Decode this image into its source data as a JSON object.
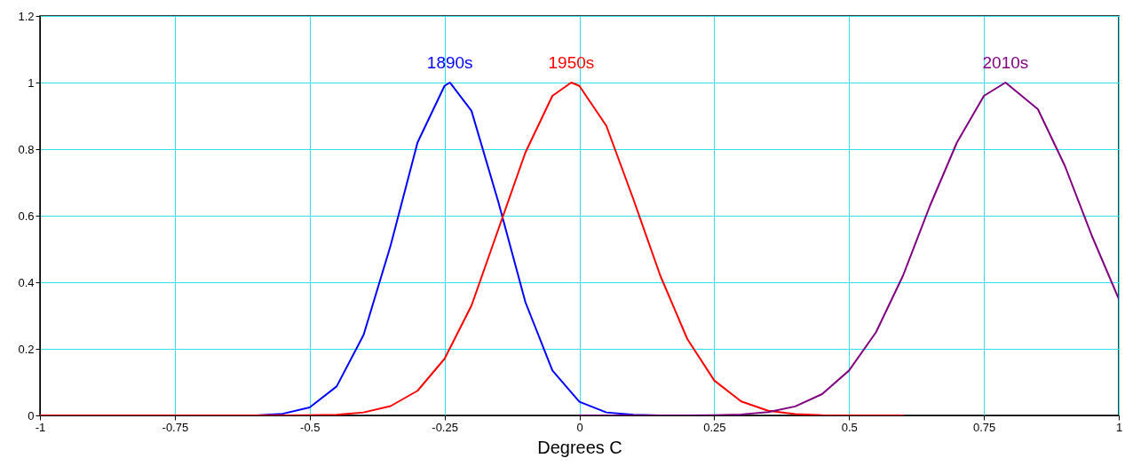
{
  "chart_data": {
    "type": "line",
    "xlabel": "Degrees C",
    "xlim": [
      -1,
      1
    ],
    "ylim": [
      0,
      1.2
    ],
    "xticks": [
      -1,
      -0.75,
      -0.5,
      -0.25,
      0,
      0.25,
      0.5,
      0.75,
      1
    ],
    "yticks": [
      0,
      0.2,
      0.4,
      0.6,
      0.8,
      1,
      1.2
    ],
    "grid": true,
    "line_style": "solid",
    "series": [
      {
        "name": "1890s",
        "color": "#0000ff",
        "x": [
          -1,
          -0.7,
          -0.6,
          -0.55,
          -0.5,
          -0.45,
          -0.4,
          -0.35,
          -0.3,
          -0.25,
          -0.24,
          -0.2,
          -0.15,
          -0.1,
          -0.05,
          0,
          0.05,
          0.1,
          0.15,
          0.3
        ],
        "values": [
          0,
          0,
          0,
          0.005,
          0.024,
          0.087,
          0.242,
          0.51,
          0.82,
          0.99,
          1,
          0.915,
          0.64,
          0.34,
          0.135,
          0.041,
          0.009,
          0.002,
          0,
          0
        ]
      },
      {
        "name": "1950s",
        "color": "#ff0000",
        "x": [
          -1,
          -0.55,
          -0.5,
          -0.45,
          -0.4,
          -0.35,
          -0.3,
          -0.25,
          -0.2,
          -0.15,
          -0.1,
          -0.05,
          -0.015,
          0,
          0.05,
          0.1,
          0.15,
          0.2,
          0.25,
          0.3,
          0.35,
          0.4,
          0.45,
          0.5,
          0.6
        ],
        "values": [
          0,
          0,
          0.001,
          0.002,
          0.009,
          0.028,
          0.074,
          0.17,
          0.33,
          0.56,
          0.79,
          0.96,
          1,
          0.99,
          0.87,
          0.65,
          0.42,
          0.23,
          0.105,
          0.042,
          0.014,
          0.004,
          0.001,
          0,
          0
        ]
      },
      {
        "name": "2010s",
        "color": "#800080",
        "x": [
          0,
          0.2,
          0.25,
          0.3,
          0.35,
          0.4,
          0.45,
          0.5,
          0.55,
          0.6,
          0.65,
          0.7,
          0.75,
          0.79,
          0.85,
          0.9,
          0.95,
          1
        ],
        "values": [
          0,
          0,
          0.001,
          0.003,
          0.01,
          0.027,
          0.064,
          0.135,
          0.25,
          0.42,
          0.63,
          0.82,
          0.96,
          1,
          0.92,
          0.75,
          0.54,
          0.35
        ]
      }
    ]
  }
}
